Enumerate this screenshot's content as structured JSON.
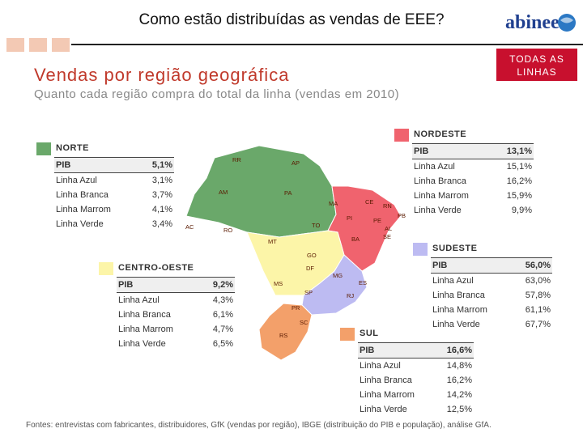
{
  "header": {
    "title": "Como estão distribuídas as vendas de EEE?",
    "logo_text": "abinee",
    "badge": "TODAS AS LINHAS"
  },
  "main_title": "Vendas por região geográfica",
  "subtitle": "Quanto cada região compra do total da linha (vendas em 2010)",
  "colors": {
    "norte": "#6aa86a",
    "nordeste": "#f0636e",
    "centro_oeste": "#fcf5a8",
    "sudeste": "#bdbbf2",
    "sul": "#f3a06a",
    "accent": "#c8102e"
  },
  "regions": {
    "norte": {
      "name": "NORTE",
      "rows": [
        {
          "label": "PIB",
          "value": "5,1%"
        },
        {
          "label": "Linha Azul",
          "value": "3,1%"
        },
        {
          "label": "Linha Branca",
          "value": "3,7%"
        },
        {
          "label": "Linha Marrom",
          "value": "4,1%"
        },
        {
          "label": "Linha Verde",
          "value": "3,4%"
        }
      ]
    },
    "nordeste": {
      "name": "NORDESTE",
      "rows": [
        {
          "label": "PIB",
          "value": "13,1%"
        },
        {
          "label": "Linha Azul",
          "value": "15,1%"
        },
        {
          "label": "Linha Branca",
          "value": "16,2%"
        },
        {
          "label": "Linha Marrom",
          "value": "15,9%"
        },
        {
          "label": "Linha Verde",
          "value": "9,9%"
        }
      ]
    },
    "centro_oeste": {
      "name": "CENTRO-OESTE",
      "rows": [
        {
          "label": "PIB",
          "value": "9,2%"
        },
        {
          "label": "Linha Azul",
          "value": "4,3%"
        },
        {
          "label": "Linha Branca",
          "value": "6,1%"
        },
        {
          "label": "Linha Marrom",
          "value": "4,7%"
        },
        {
          "label": "Linha Verde",
          "value": "6,5%"
        }
      ]
    },
    "sudeste": {
      "name": "SUDESTE",
      "rows": [
        {
          "label": "PIB",
          "value": "56,0%"
        },
        {
          "label": "Linha Azul",
          "value": "63,0%"
        },
        {
          "label": "Linha Branca",
          "value": "57,8%"
        },
        {
          "label": "Linha Marrom",
          "value": "61,1%"
        },
        {
          "label": "Linha Verde",
          "value": "67,7%"
        }
      ]
    },
    "sul": {
      "name": "SUL",
      "rows": [
        {
          "label": "PIB",
          "value": "16,6%"
        },
        {
          "label": "Linha Azul",
          "value": "14,8%"
        },
        {
          "label": "Linha Branca",
          "value": "16,2%"
        },
        {
          "label": "Linha Marrom",
          "value": "14,2%"
        },
        {
          "label": "Linha Verde",
          "value": "12,5%"
        }
      ]
    }
  },
  "map_states": [
    "RR",
    "AP",
    "AM",
    "PA",
    "MA",
    "CE",
    "RN",
    "PB",
    "PI",
    "PE",
    "AL",
    "SE",
    "TO",
    "BA",
    "AC",
    "RO",
    "MT",
    "GO",
    "DF",
    "MG",
    "ES",
    "MS",
    "SP",
    "RJ",
    "PR",
    "SC",
    "RS"
  ],
  "footer": "Fontes: entrevistas com fabricantes, distribuidores, GfK (vendas por região), IBGE (distribuição do PIB e população), análise GfA."
}
